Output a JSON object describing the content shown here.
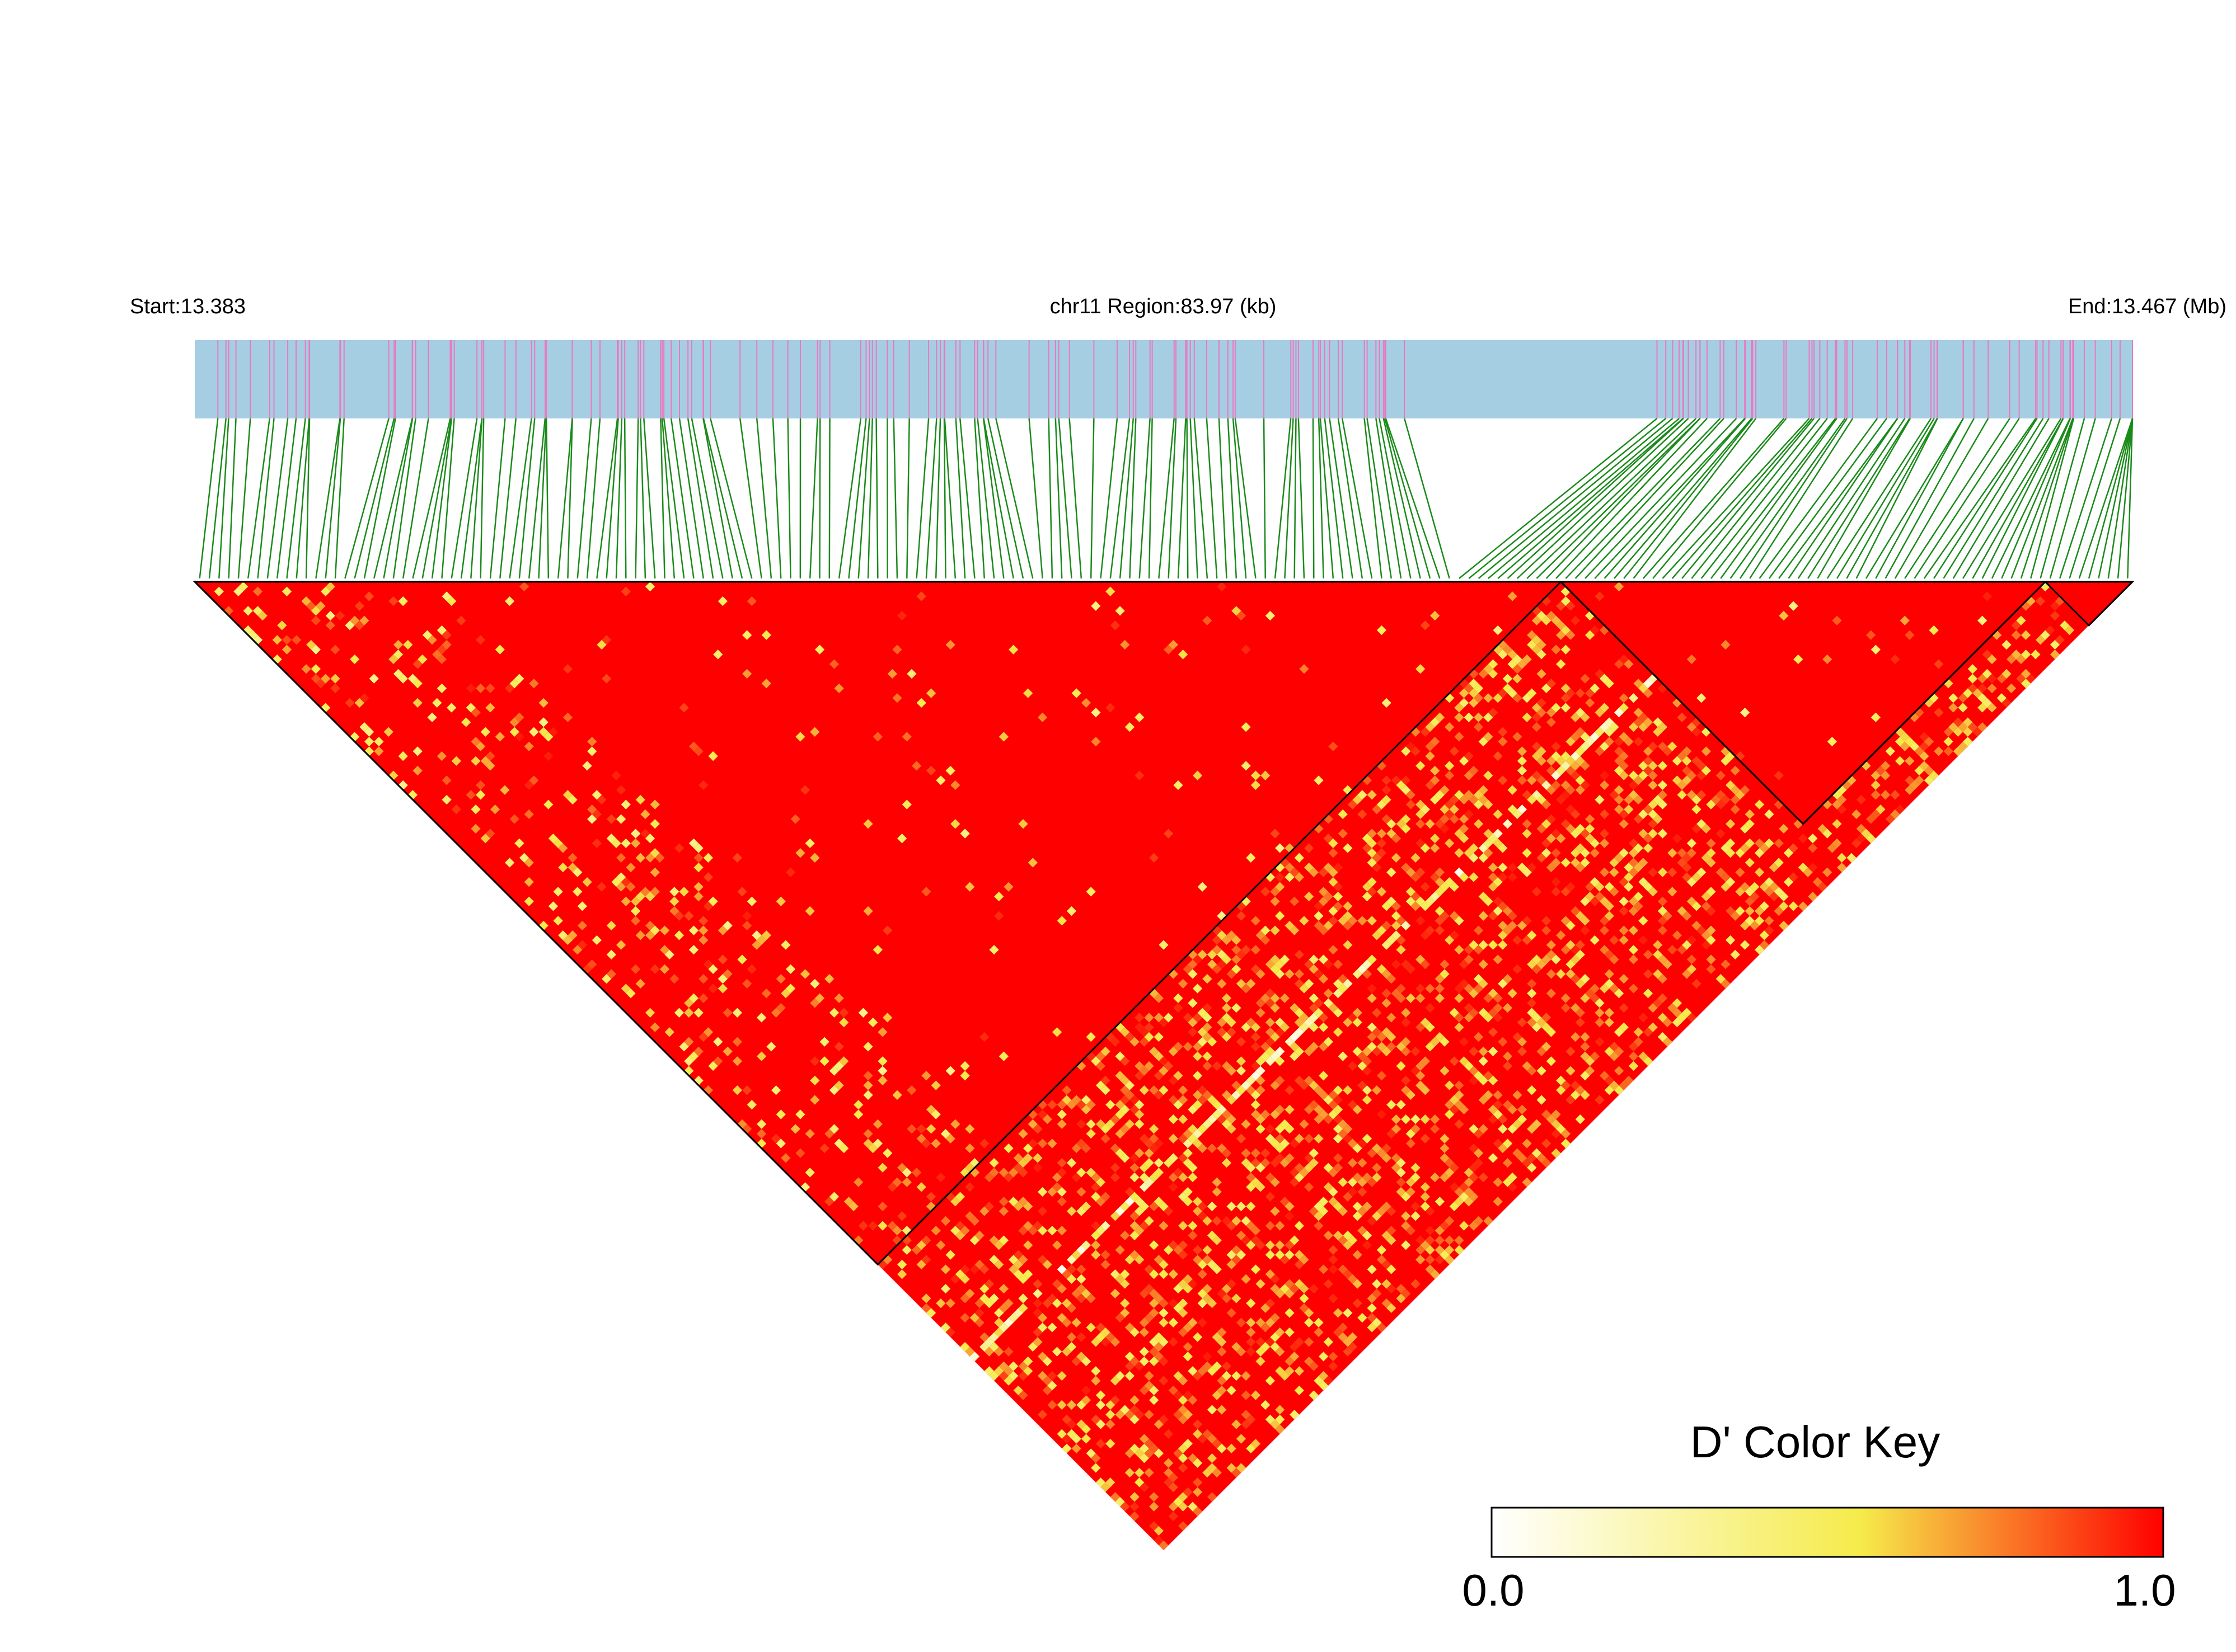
{
  "header": {
    "start_label": "Start:13.383",
    "region_label": "chr11 Region:83.97 (kb)",
    "end_label": "End:13.467 (Mb)"
  },
  "legend": {
    "title": "D' Color Key",
    "min_label": "0.0",
    "max_label": "1.0",
    "colors": [
      "#ffffff",
      "#f5eb4b",
      "#ff0000"
    ]
  },
  "colors": {
    "snp_bar_background": "#a6cee3",
    "snp_tick": "#e879c1",
    "connector": "#1a8a1a",
    "high_ld": "#ff0000",
    "block_outline": "#000000"
  },
  "chart_data": {
    "type": "heatmap",
    "title": "",
    "chromosome": "chr11",
    "region_start_mb": 13.383,
    "region_end_mb": 13.467,
    "region_size_kb": 83.97,
    "value_range": [
      0.0,
      1.0
    ],
    "background_value": 1.0,
    "snp_count": 200,
    "snp_cluster_centers_mb": [
      13.387,
      13.393,
      13.399,
      13.405,
      13.411,
      13.417,
      13.423,
      13.429,
      13.433,
      13.448,
      13.452,
      13.456,
      13.462,
      13.466
    ],
    "ld_blocks_snp_index": [
      [
        0,
        140
      ],
      [
        141,
        190
      ],
      [
        191,
        199
      ]
    ],
    "low_ld_stripes_snp_index": [
      140,
      160
    ]
  }
}
